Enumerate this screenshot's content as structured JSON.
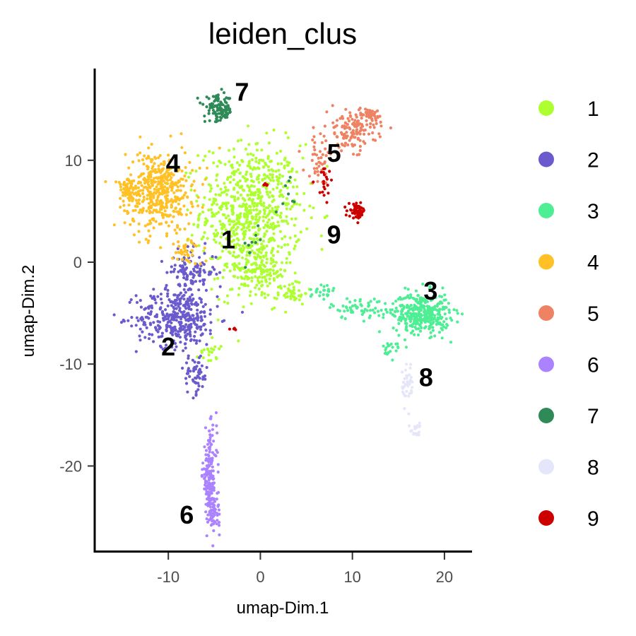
{
  "chart_data": {
    "type": "scatter",
    "title": "leiden_clus",
    "xlabel": "umap-Dim.1",
    "ylabel": "umap-Dim.2",
    "xlim": [
      -18,
      23
    ],
    "ylim": [
      -28.5,
      19
    ],
    "xticks": [
      -10,
      0,
      10,
      20
    ],
    "yticks": [
      -20,
      -10,
      0,
      10
    ],
    "xtick_labels": [
      "-10",
      "0",
      "10",
      "20"
    ],
    "ytick_labels": [
      "-20",
      "-10",
      "0",
      "10"
    ],
    "grid": false,
    "legend_position": "right",
    "clusters": [
      {
        "name": "1",
        "color": "#adff2f",
        "label_pos": [
          -3.5,
          2.0
        ],
        "regions": [
          {
            "cx": -1.0,
            "cy": 5.0,
            "sx": 5.0,
            "sy": 6.0,
            "n": 700
          },
          {
            "cx": -0.5,
            "cy": -1.0,
            "sx": 3.5,
            "sy": 2.5,
            "n": 150
          },
          {
            "cx": 3.5,
            "cy": -3.0,
            "sx": 1.5,
            "sy": 1.0,
            "n": 40
          },
          {
            "cx": -5.5,
            "cy": -8.5,
            "sx": 1.0,
            "sy": 1.5,
            "n": 20
          }
        ]
      },
      {
        "name": "2",
        "color": "#6a5acd",
        "label_pos": [
          -10,
          -8.5
        ],
        "regions": [
          {
            "cx": -9.0,
            "cy": -5.5,
            "sx": 4.0,
            "sy": 2.5,
            "n": 350
          },
          {
            "cx": -7.5,
            "cy": -1.0,
            "sx": 2.5,
            "sy": 2.0,
            "n": 120
          },
          {
            "cx": -7.0,
            "cy": -11.0,
            "sx": 1.2,
            "sy": 1.8,
            "n": 60
          }
        ]
      },
      {
        "name": "3",
        "color": "#4eee94",
        "label_pos": [
          18.5,
          -3.0
        ],
        "regions": [
          {
            "cx": 17.5,
            "cy": -5.0,
            "sx": 2.8,
            "sy": 1.8,
            "n": 350
          },
          {
            "cx": 11.0,
            "cy": -4.5,
            "sx": 3.0,
            "sy": 1.0,
            "n": 60
          },
          {
            "cx": 6.5,
            "cy": -3.0,
            "sx": 1.5,
            "sy": 1.0,
            "n": 25
          },
          {
            "cx": 14.5,
            "cy": -8.5,
            "sx": 1.0,
            "sy": 1.0,
            "n": 20
          }
        ]
      },
      {
        "name": "4",
        "color": "#ffc125",
        "label_pos": [
          -9.5,
          9.5
        ],
        "regions": [
          {
            "cx": -11.0,
            "cy": 7.0,
            "sx": 3.3,
            "sy": 3.5,
            "n": 450
          },
          {
            "cx": -14.5,
            "cy": 7.0,
            "sx": 1.0,
            "sy": 1.0,
            "n": 60
          },
          {
            "cx": -8.0,
            "cy": 1.0,
            "sx": 1.5,
            "sy": 1.2,
            "n": 40
          }
        ]
      },
      {
        "name": "5",
        "color": "#ee8262",
        "label_pos": [
          8.0,
          10.5
        ],
        "regions": [
          {
            "cx": 10.0,
            "cy": 13.0,
            "sx": 2.5,
            "sy": 1.8,
            "n": 150
          },
          {
            "cx": 6.5,
            "cy": 10.0,
            "sx": 1.5,
            "sy": 2.0,
            "n": 40
          },
          {
            "cx": 12.0,
            "cy": 14.5,
            "sx": 0.8,
            "sy": 0.6,
            "n": 40
          }
        ]
      },
      {
        "name": "6",
        "color": "#ab82ff",
        "label_pos": [
          -8.0,
          -25.0
        ],
        "regions": [
          {
            "cx": -5.5,
            "cy": -21.0,
            "sx": 0.7,
            "sy": 4.0,
            "n": 170
          },
          {
            "cx": -5.0,
            "cy": -24.5,
            "sx": 0.6,
            "sy": 1.2,
            "n": 50
          }
        ]
      },
      {
        "name": "7",
        "color": "#2e8b57",
        "label_pos": [
          -2.0,
          16.5
        ],
        "regions": [
          {
            "cx": -4.5,
            "cy": 15.0,
            "sx": 1.4,
            "sy": 1.2,
            "n": 110
          },
          {
            "cx": -1.0,
            "cy": 2.0,
            "sx": 1.0,
            "sy": 2.0,
            "n": 10
          },
          {
            "cx": 3.0,
            "cy": 6.0,
            "sx": 1.0,
            "sy": 2.0,
            "n": 8
          }
        ]
      },
      {
        "name": "8",
        "color": "#e6e6fa",
        "label_pos": [
          18.0,
          -11.5
        ],
        "regions": [
          {
            "cx": 16.0,
            "cy": -12.0,
            "sx": 0.6,
            "sy": 2.0,
            "n": 40
          },
          {
            "cx": 17.0,
            "cy": -16.5,
            "sx": 0.6,
            "sy": 0.7,
            "n": 20
          }
        ]
      },
      {
        "name": "9",
        "color": "#cd0000",
        "label_pos": [
          8.0,
          2.5
        ],
        "regions": [
          {
            "cx": 10.5,
            "cy": 5.0,
            "sx": 0.8,
            "sy": 0.6,
            "n": 60
          },
          {
            "cx": 7.0,
            "cy": 8.0,
            "sx": 1.0,
            "sy": 1.5,
            "n": 20
          },
          {
            "cx": 0.5,
            "cy": 7.5,
            "sx": 0.3,
            "sy": 0.3,
            "n": 5
          },
          {
            "cx": -3.0,
            "cy": -6.5,
            "sx": 0.4,
            "sy": 0.3,
            "n": 4
          }
        ]
      }
    ]
  }
}
